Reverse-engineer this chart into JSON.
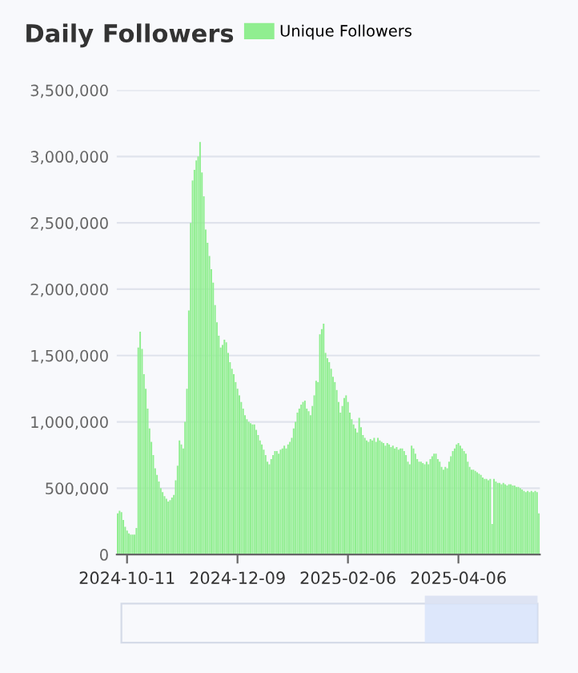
{
  "chart_data": {
    "type": "bar",
    "title": "Daily Followers",
    "legend": "top",
    "grid": "y",
    "ylim": [
      0,
      3500000
    ],
    "yticks": [
      0,
      {
        "value": 500000,
        "label": "500,000"
      },
      {
        "value": 1000000,
        "label": "1,000,000"
      },
      {
        "value": 1500000,
        "label": "1,500,000"
      },
      {
        "value": 2000000,
        "label": "2,000,000"
      },
      {
        "value": 2500000,
        "label": "2,500,000"
      },
      {
        "value": 3000000,
        "label": "3,000,000"
      },
      {
        "value": 3500000,
        "label": "3,500,000"
      }
    ],
    "categories": [
      null,
      null,
      null,
      null,
      null,
      "2024-10-11",
      null,
      null,
      null,
      null,
      null,
      null,
      null,
      null,
      null,
      null,
      null,
      null,
      null,
      null,
      null,
      null,
      null,
      null,
      null,
      null,
      null,
      null,
      null,
      null,
      null,
      null,
      null,
      null,
      null,
      null,
      null,
      null,
      null,
      null,
      null,
      null,
      null,
      null,
      null,
      null,
      null,
      null,
      null,
      null,
      null,
      null,
      null,
      null,
      null,
      null,
      null,
      null,
      null,
      null,
      null,
      null,
      null,
      null,
      "2024-12-09",
      null,
      null,
      null,
      null,
      null,
      null,
      null,
      null,
      null,
      null,
      null,
      null,
      null,
      null,
      null,
      null,
      null,
      null,
      null,
      null,
      null,
      null,
      null,
      null,
      null,
      null,
      null,
      null,
      null,
      null,
      null,
      null,
      null,
      null,
      null,
      null,
      null,
      null,
      null,
      null,
      null,
      null,
      null,
      null,
      null,
      null,
      null,
      null,
      null,
      null,
      null,
      null,
      null,
      null,
      null,
      null,
      null,
      null,
      "2025-02-06",
      null,
      null,
      null,
      null,
      null,
      null,
      null,
      null,
      null,
      null,
      null,
      null,
      null,
      null,
      null,
      null,
      null,
      null,
      null,
      null,
      null,
      null,
      null,
      null,
      null,
      null,
      null,
      null,
      null,
      null,
      null,
      null,
      null,
      null,
      null,
      null,
      null,
      null,
      null,
      null,
      null,
      null,
      null,
      null,
      null,
      null,
      null,
      null,
      null,
      null,
      null,
      null,
      null,
      null,
      null,
      null,
      null,
      null,
      "2025-04-06",
      null,
      null,
      null,
      null,
      null,
      null,
      null,
      null,
      null,
      null,
      null,
      null,
      null,
      null,
      null,
      null,
      null,
      null,
      null,
      null,
      null,
      null,
      null,
      null,
      null,
      null,
      null,
      null,
      null,
      null,
      null,
      null,
      null,
      null,
      null,
      null,
      null,
      null,
      null,
      null,
      null,
      null,
      null
    ],
    "series": [
      {
        "name": "Unique Followers",
        "color": "#90ee90",
        "values": [
          310000,
          330000,
          320000,
          260000,
          210000,
          180000,
          160000,
          150000,
          150000,
          150000,
          200000,
          1560000,
          1680000,
          1550000,
          1360000,
          1250000,
          1100000,
          950000,
          850000,
          750000,
          650000,
          600000,
          550000,
          500000,
          470000,
          440000,
          420000,
          400000,
          410000,
          430000,
          450000,
          560000,
          670000,
          860000,
          830000,
          800000,
          1000000,
          1250000,
          1840000,
          2500000,
          2820000,
          2900000,
          2970000,
          3000000,
          3110000,
          2880000,
          2700000,
          2450000,
          2350000,
          2250000,
          2150000,
          2050000,
          1880000,
          1750000,
          1650000,
          1560000,
          1580000,
          1620000,
          1600000,
          1520000,
          1450000,
          1400000,
          1360000,
          1300000,
          1250000,
          1200000,
          1150000,
          1100000,
          1050000,
          1020000,
          1000000,
          990000,
          980000,
          980000,
          940000,
          900000,
          860000,
          830000,
          790000,
          750000,
          700000,
          680000,
          720000,
          750000,
          780000,
          780000,
          760000,
          790000,
          800000,
          820000,
          800000,
          830000,
          850000,
          880000,
          950000,
          1000000,
          1070000,
          1100000,
          1130000,
          1150000,
          1160000,
          1100000,
          1080000,
          1050000,
          1120000,
          1200000,
          1310000,
          1300000,
          1660000,
          1700000,
          1740000,
          1520000,
          1480000,
          1450000,
          1400000,
          1340000,
          1300000,
          1240000,
          1150000,
          1070000,
          1120000,
          1180000,
          1200000,
          1150000,
          1070000,
          1020000,
          980000,
          950000,
          920000,
          1030000,
          960000,
          900000,
          880000,
          860000,
          850000,
          870000,
          860000,
          880000,
          850000,
          880000,
          860000,
          850000,
          840000,
          820000,
          840000,
          830000,
          810000,
          820000,
          800000,
          810000,
          790000,
          800000,
          800000,
          780000,
          750000,
          700000,
          680000,
          820000,
          800000,
          760000,
          720000,
          700000,
          700000,
          690000,
          680000,
          700000,
          680000,
          720000,
          740000,
          760000,
          760000,
          720000,
          700000,
          660000,
          640000,
          660000,
          650000,
          700000,
          740000,
          780000,
          800000,
          830000,
          840000,
          820000,
          800000,
          780000,
          760000,
          700000,
          660000,
          640000,
          640000,
          630000,
          620000,
          610000,
          600000,
          580000,
          570000,
          570000,
          560000,
          570000,
          230000,
          570000,
          550000,
          540000,
          540000,
          530000,
          540000,
          530000,
          520000,
          530000,
          530000,
          520000,
          520000,
          510000,
          510000,
          500000,
          490000,
          480000,
          470000,
          480000,
          470000,
          480000,
          470000,
          480000,
          470000,
          310000
        ]
      }
    ]
  }
}
